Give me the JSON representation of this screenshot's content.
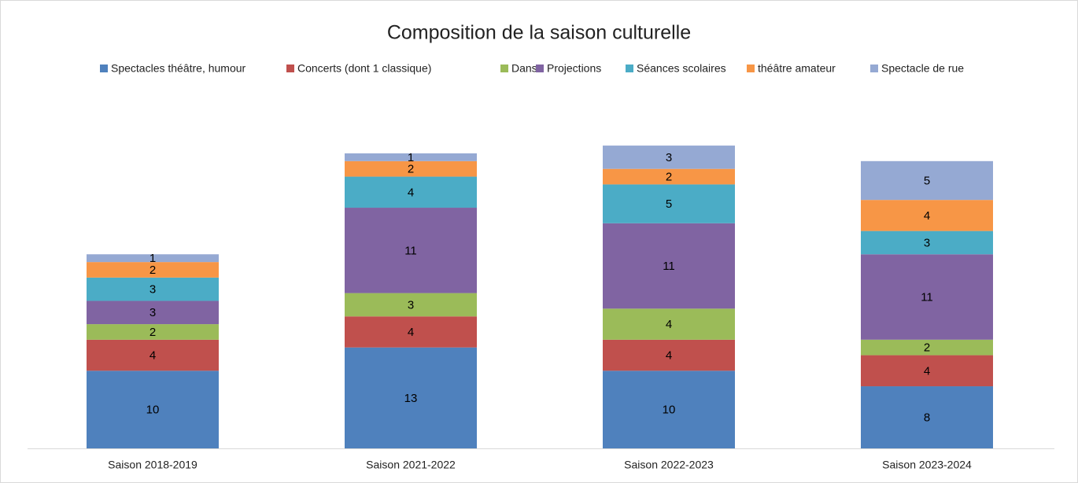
{
  "chart_data": {
    "type": "stacked_bar",
    "title": "Composition de la saison culturelle",
    "categories": [
      "Saison 2018-2019",
      "Saison 2021-2022",
      "Saison 2022-2023",
      "Saison 2023-2024"
    ],
    "series": [
      {
        "name": "Spectacles théâtre, humour",
        "color": "#4f81bd",
        "values": [
          10,
          13,
          10,
          8
        ]
      },
      {
        "name": "Concerts (dont 1 classique)",
        "color": "#c0504d",
        "values": [
          4,
          4,
          4,
          4
        ]
      },
      {
        "name": "Danse",
        "color": "#9bbb59",
        "values": [
          2,
          3,
          4,
          2
        ]
      },
      {
        "name": "Projections",
        "color": "#8064a2",
        "values": [
          3,
          11,
          11,
          11
        ]
      },
      {
        "name": "Séances scolaires",
        "color": "#4bacc6",
        "values": [
          3,
          4,
          5,
          3
        ]
      },
      {
        "name": "théâtre amateur",
        "color": "#f79646",
        "values": [
          2,
          2,
          2,
          4
        ]
      },
      {
        "name": "Spectacle de rue",
        "color": "#95a9d3",
        "values": [
          1,
          1,
          3,
          5
        ]
      }
    ],
    "legend": "top"
  }
}
